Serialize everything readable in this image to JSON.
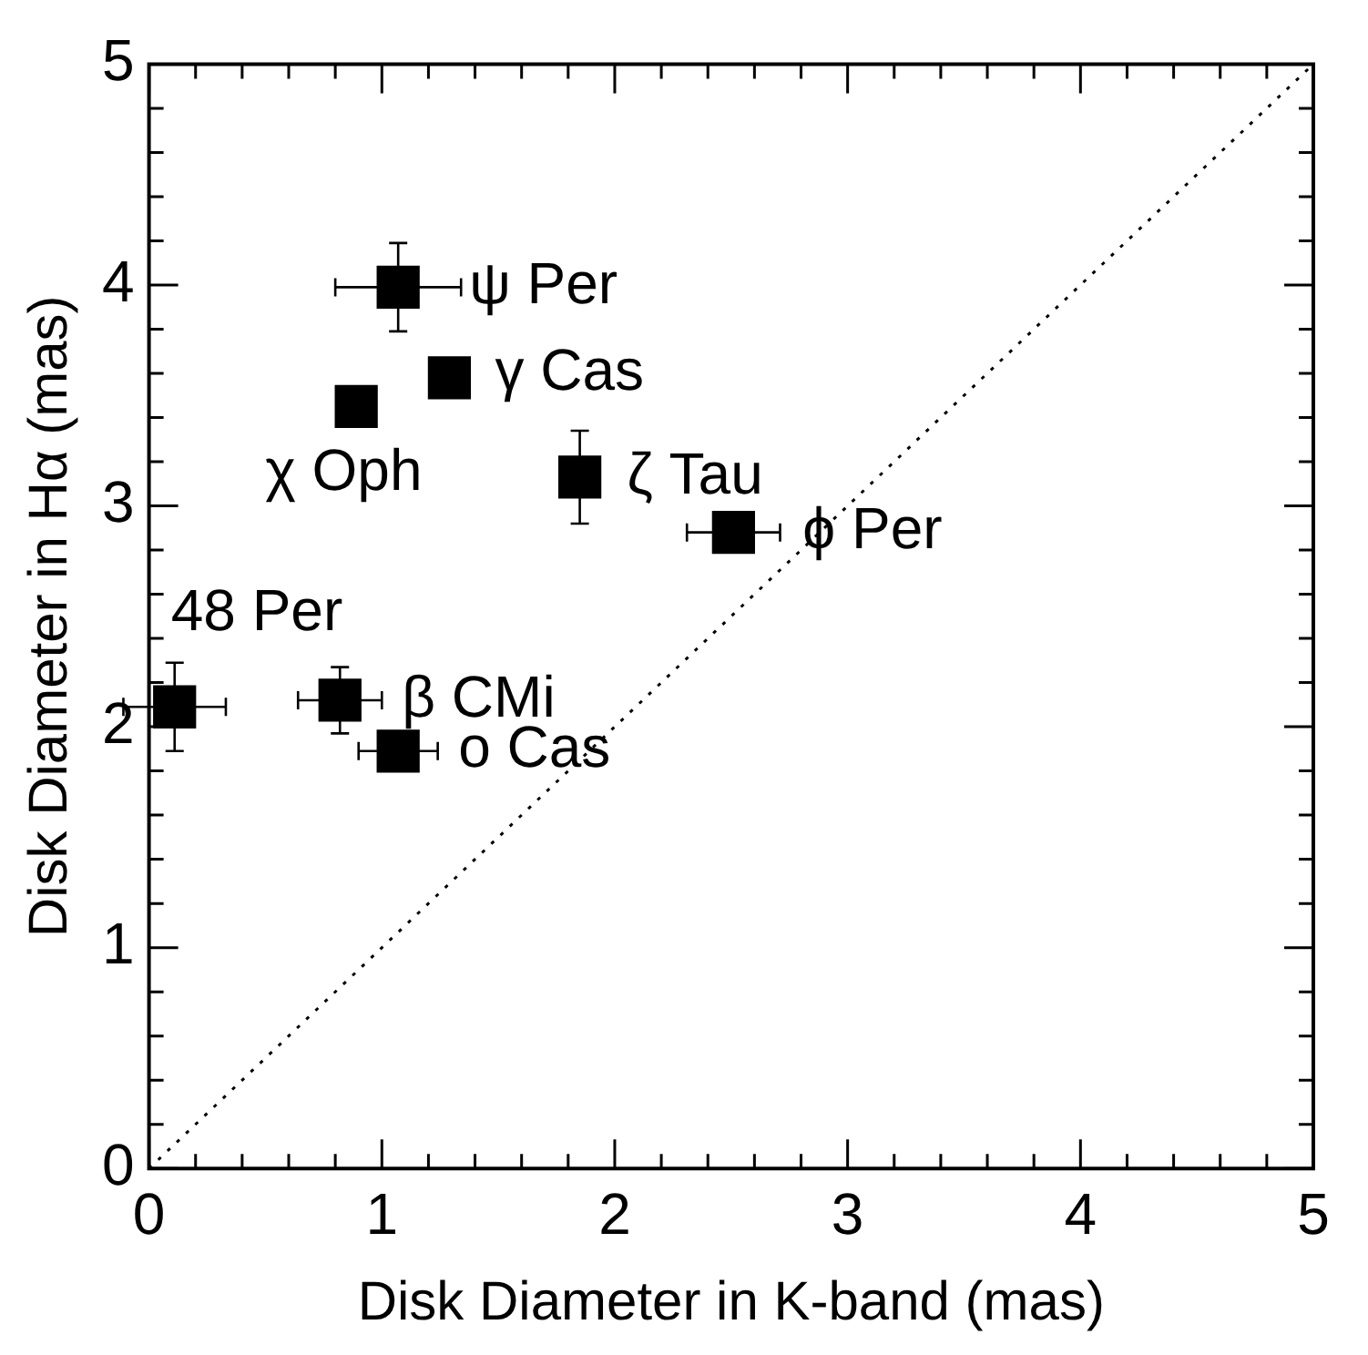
{
  "chart_data": {
    "type": "scatter",
    "xlabel": "Disk Diameter in K-band (mas)",
    "ylabel": "Disk Diameter in Hα (mas)",
    "xlim": [
      0,
      5
    ],
    "ylim": [
      0,
      5
    ],
    "xticks": [
      0,
      {
        "value": 0.2,
        "label": null
      },
      {
        "value": 0.4,
        "label": null
      },
      {
        "value": 0.6,
        "label": null
      },
      {
        "value": 0.8,
        "label": null
      },
      1,
      {
        "value": 1.2,
        "label": null
      },
      {
        "value": 1.4,
        "label": null
      },
      {
        "value": 1.6,
        "label": null
      },
      {
        "value": 1.8,
        "label": null
      },
      2,
      {
        "value": 2.2,
        "label": null
      },
      {
        "value": 2.4,
        "label": null
      },
      {
        "value": 2.6,
        "label": null
      },
      {
        "value": 2.8,
        "label": null
      },
      3,
      {
        "value": 3.2,
        "label": null
      },
      {
        "value": 3.4,
        "label": null
      },
      {
        "value": 3.6,
        "label": null
      },
      {
        "value": 3.8,
        "label": null
      },
      4,
      {
        "value": 4.2,
        "label": null
      },
      {
        "value": 4.4,
        "label": null
      },
      {
        "value": 4.6,
        "label": null
      },
      {
        "value": 4.8,
        "label": null
      },
      5
    ],
    "yticks": [
      0,
      {
        "value": 0.2,
        "label": null
      },
      {
        "value": 0.4,
        "label": null
      },
      {
        "value": 0.6,
        "label": null
      },
      {
        "value": 0.8,
        "label": null
      },
      1,
      {
        "value": 1.2,
        "label": null
      },
      {
        "value": 1.4,
        "label": null
      },
      {
        "value": 1.6,
        "label": null
      },
      {
        "value": 1.8,
        "label": null
      },
      2,
      {
        "value": 2.2,
        "label": null
      },
      {
        "value": 2.4,
        "label": null
      },
      {
        "value": 2.6,
        "label": null
      },
      {
        "value": 2.8,
        "label": null
      },
      3,
      {
        "value": 3.2,
        "label": null
      },
      {
        "value": 3.4,
        "label": null
      },
      {
        "value": 3.6,
        "label": null
      },
      {
        "value": 3.8,
        "label": null
      },
      4,
      {
        "value": 4.2,
        "label": null
      },
      {
        "value": 4.4,
        "label": null
      },
      {
        "value": 4.6,
        "label": null
      },
      {
        "value": 4.8,
        "label": null
      },
      5
    ],
    "grid": false,
    "legend": false,
    "marker": "square",
    "series": [
      {
        "color": "#000000",
        "x": [
          1.07,
          1.29,
          0.89,
          1.85,
          2.51,
          0.11,
          0.82,
          1.07
        ],
        "values": [
          3.99,
          3.58,
          3.45,
          3.13,
          2.88,
          2.09,
          2.12,
          1.89
        ],
        "xerrors": [
          0.27,
          null,
          null,
          null,
          0.2,
          0.22,
          0.18,
          0.17
        ],
        "errors": [
          0.2,
          null,
          null,
          0.21,
          null,
          0.2,
          0.15,
          null
        ]
      },
      {
        "type": "line",
        "color": "#000000",
        "line_style": "dotted",
        "marker": "none",
        "x": [
          0,
          5
        ],
        "values": [
          0,
          5
        ]
      }
    ],
    "annotations": [
      {
        "text": "ψ Per",
        "x": 1.07,
        "y": 3.99
      },
      {
        "text": "γ Cas",
        "x": 1.29,
        "y": 3.58
      },
      {
        "text": "χ Oph",
        "x": 0.89,
        "y": 3.45
      },
      {
        "text": "ζ Tau",
        "x": 1.85,
        "y": 3.13
      },
      {
        "text": "ϕ Per",
        "x": 2.51,
        "y": 2.88
      },
      {
        "text": "48 Per",
        "x": 0.11,
        "y": 2.09
      },
      {
        "text": "β CMi",
        "x": 0.82,
        "y": 2.12
      },
      {
        "text": "ο Cas",
        "x": 1.07,
        "y": 1.89
      }
    ]
  }
}
